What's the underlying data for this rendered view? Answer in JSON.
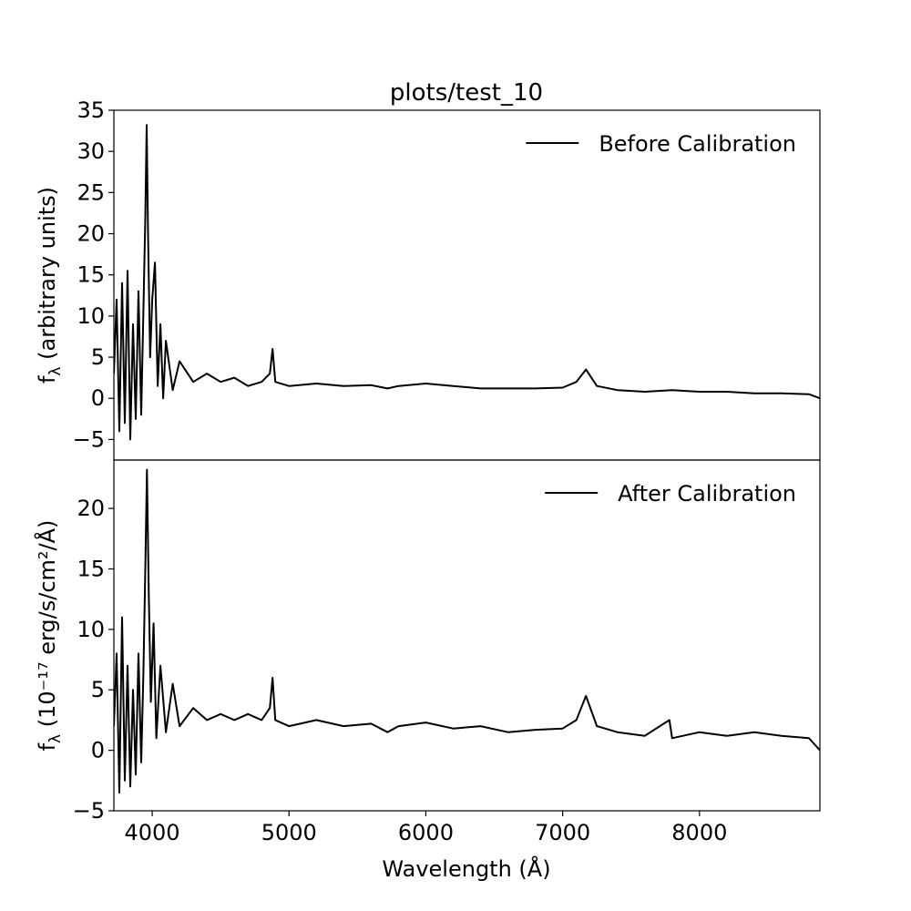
{
  "chart_data": [
    {
      "type": "line",
      "title": "plots/test_10",
      "xlabel": "",
      "ylabel": "f_λ (arbitrary units)",
      "xlim": [
        3720,
        8880
      ],
      "ylim": [
        -7.5,
        35
      ],
      "yticks": [
        -5,
        0,
        5,
        10,
        15,
        20,
        25,
        30,
        35
      ],
      "grid": false,
      "legend_position": "top-right",
      "series": [
        {
          "name": "Before Calibration",
          "color": "#000000",
          "points": [
            [
              3720,
              3.0
            ],
            [
              3740,
              12.0
            ],
            [
              3760,
              -4.0
            ],
            [
              3780,
              14.0
            ],
            [
              3800,
              -3.0
            ],
            [
              3820,
              15.5
            ],
            [
              3840,
              -5.0
            ],
            [
              3860,
              9.0
            ],
            [
              3880,
              -2.5
            ],
            [
              3900,
              13.0
            ],
            [
              3920,
              -2.0
            ],
            [
              3935,
              10.0
            ],
            [
              3950,
              22.0
            ],
            [
              3960,
              33.2
            ],
            [
              3970,
              20.0
            ],
            [
              3985,
              5.0
            ],
            [
              4000,
              12.0
            ],
            [
              4020,
              16.5
            ],
            [
              4040,
              1.5
            ],
            [
              4060,
              9.0
            ],
            [
              4080,
              0.0
            ],
            [
              4100,
              7.0
            ],
            [
              4150,
              1.0
            ],
            [
              4200,
              4.5
            ],
            [
              4300,
              2.0
            ],
            [
              4400,
              3.0
            ],
            [
              4500,
              2.0
            ],
            [
              4600,
              2.5
            ],
            [
              4700,
              1.5
            ],
            [
              4800,
              2.0
            ],
            [
              4860,
              3.0
            ],
            [
              4880,
              6.0
            ],
            [
              4900,
              2.0
            ],
            [
              5000,
              1.5
            ],
            [
              5200,
              1.8
            ],
            [
              5400,
              1.5
            ],
            [
              5600,
              1.6
            ],
            [
              5720,
              1.2
            ],
            [
              5800,
              1.5
            ],
            [
              6000,
              1.8
            ],
            [
              6200,
              1.5
            ],
            [
              6400,
              1.2
            ],
            [
              6600,
              1.2
            ],
            [
              6800,
              1.2
            ],
            [
              7000,
              1.3
            ],
            [
              7100,
              2.0
            ],
            [
              7170,
              3.5
            ],
            [
              7250,
              1.5
            ],
            [
              7400,
              1.0
            ],
            [
              7600,
              0.8
            ],
            [
              7800,
              1.0
            ],
            [
              8000,
              0.8
            ],
            [
              8200,
              0.8
            ],
            [
              8400,
              0.6
            ],
            [
              8600,
              0.6
            ],
            [
              8800,
              0.5
            ],
            [
              8880,
              0.0
            ]
          ]
        }
      ]
    },
    {
      "type": "line",
      "title": "",
      "xlabel": "Wavelength (Å)",
      "ylabel": "f_λ (10⁻¹⁷ erg/s/cm²/Å)",
      "xlim": [
        3720,
        8880
      ],
      "ylim": [
        -5,
        24
      ],
      "xticks": [
        4000,
        5000,
        6000,
        7000,
        8000
      ],
      "yticks": [
        -5,
        0,
        5,
        10,
        15,
        20
      ],
      "grid": false,
      "legend_position": "top-right",
      "series": [
        {
          "name": "After Calibration",
          "color": "#000000",
          "points": [
            [
              3720,
              2.0
            ],
            [
              3740,
              8.0
            ],
            [
              3760,
              -3.5
            ],
            [
              3780,
              11.0
            ],
            [
              3800,
              -2.5
            ],
            [
              3820,
              7.0
            ],
            [
              3840,
              -3.0
            ],
            [
              3860,
              5.0
            ],
            [
              3880,
              -2.0
            ],
            [
              3900,
              8.0
            ],
            [
              3920,
              -1.0
            ],
            [
              3935,
              6.0
            ],
            [
              3950,
              15.0
            ],
            [
              3962,
              23.2
            ],
            [
              3975,
              13.0
            ],
            [
              3990,
              4.0
            ],
            [
              4010,
              10.5
            ],
            [
              4030,
              1.0
            ],
            [
              4060,
              7.0
            ],
            [
              4100,
              1.5
            ],
            [
              4150,
              5.5
            ],
            [
              4200,
              2.0
            ],
            [
              4300,
              3.5
            ],
            [
              4400,
              2.5
            ],
            [
              4500,
              3.0
            ],
            [
              4600,
              2.5
            ],
            [
              4700,
              3.0
            ],
            [
              4800,
              2.5
            ],
            [
              4860,
              3.5
            ],
            [
              4880,
              6.0
            ],
            [
              4900,
              2.5
            ],
            [
              5000,
              2.0
            ],
            [
              5200,
              2.5
            ],
            [
              5400,
              2.0
            ],
            [
              5600,
              2.2
            ],
            [
              5720,
              1.5
            ],
            [
              5800,
              2.0
            ],
            [
              6000,
              2.3
            ],
            [
              6200,
              1.8
            ],
            [
              6400,
              2.0
            ],
            [
              6600,
              1.5
            ],
            [
              6800,
              1.7
            ],
            [
              7000,
              1.8
            ],
            [
              7100,
              2.5
            ],
            [
              7170,
              4.5
            ],
            [
              7250,
              2.0
            ],
            [
              7400,
              1.5
            ],
            [
              7600,
              1.2
            ],
            [
              7780,
              2.5
            ],
            [
              7800,
              1.0
            ],
            [
              8000,
              1.5
            ],
            [
              8200,
              1.2
            ],
            [
              8400,
              1.5
            ],
            [
              8600,
              1.2
            ],
            [
              8800,
              1.0
            ],
            [
              8880,
              0.0
            ]
          ]
        }
      ]
    }
  ]
}
